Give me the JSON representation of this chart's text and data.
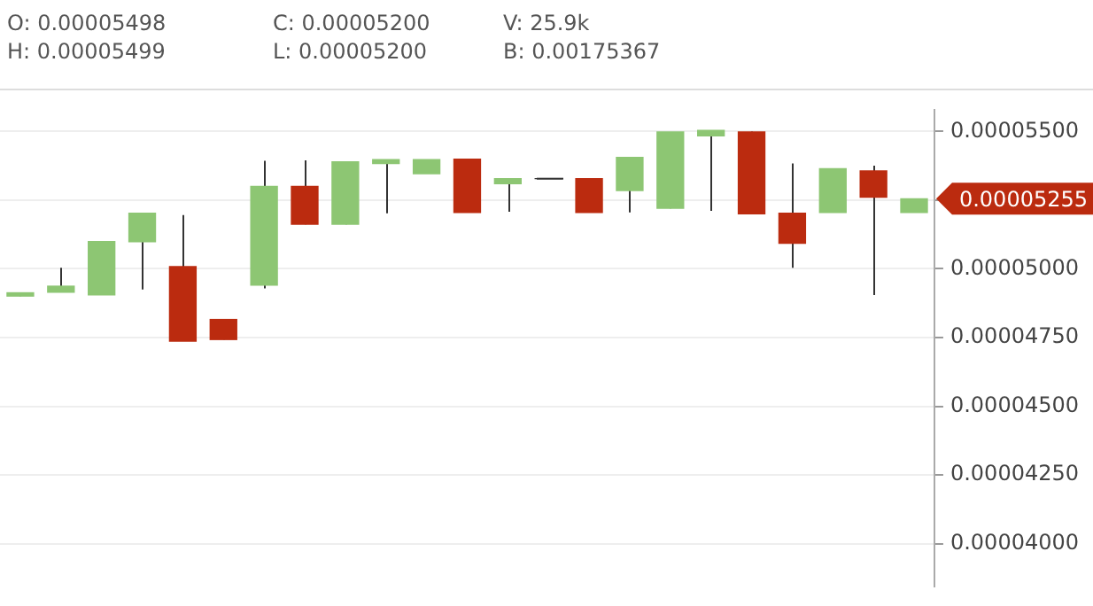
{
  "chart_data": {
    "type": "candlestick",
    "categories": [
      null,
      null,
      null,
      null,
      null,
      null,
      null,
      null,
      null,
      null,
      null,
      null,
      null,
      null,
      null,
      null,
      null,
      null,
      null,
      null,
      null,
      null,
      null
    ],
    "ohlc": [
      [
        4.901e-05,
        4.913e-05,
        4.901e-05,
        4.913e-05
      ],
      [
        4.915e-05,
        5.004e-05,
        4.915e-05,
        4.937e-05
      ],
      [
        4.905e-05,
        5.099e-05,
        4.905e-05,
        5.099e-05
      ],
      [
        5.099e-05,
        5.202e-05,
        4.925e-05,
        5.202e-05
      ],
      [
        5.008e-05,
        5.196e-05,
        4.737e-05,
        4.737e-05
      ],
      [
        4.816e-05,
        4.816e-05,
        4.743e-05,
        4.743e-05
      ],
      [
        4.941e-05,
        5.393e-05,
        4.929e-05,
        5.3e-05
      ],
      [
        5.3e-05,
        5.395e-05,
        5.162e-05,
        5.162e-05
      ],
      [
        5.162e-05,
        5.389e-05,
        5.162e-05,
        5.389e-05
      ],
      [
        5.383e-05,
        5.397e-05,
        5.202e-05,
        5.397e-05
      ],
      [
        5.346e-05,
        5.397e-05,
        5.346e-05,
        5.397e-05
      ],
      [
        5.399e-05,
        5.399e-05,
        5.205e-05,
        5.205e-05
      ],
      [
        5.31e-05,
        5.328e-05,
        5.208e-05,
        5.328e-05
      ],
      [
        5.328e-05,
        5.328e-05,
        5.328e-05,
        5.328e-05
      ],
      [
        5.328e-05,
        5.328e-05,
        5.205e-05,
        5.205e-05
      ],
      [
        5.285e-05,
        5.405e-05,
        5.205e-05,
        5.405e-05
      ],
      [
        5.22e-05,
        5.498e-05,
        5.22e-05,
        5.498e-05
      ],
      [
        5.484e-05,
        5.504e-05,
        5.211e-05,
        5.504e-05
      ],
      [
        5.498e-05,
        5.499e-05,
        5.2e-05,
        5.2e-05
      ],
      [
        5.202e-05,
        5.383e-05,
        5.004e-05,
        5.093e-05
      ],
      [
        5.205e-05,
        5.364e-05,
        5.205e-05,
        5.364e-05
      ],
      [
        5.356e-05,
        5.375e-05,
        4.905e-05,
        5.261e-05
      ],
      [
        5.205e-05,
        5.255e-05,
        5.205e-05,
        5.255e-05
      ]
    ],
    "colors": [
      "#8dc673",
      "#8dc673",
      "#8dc673",
      "#8dc673",
      "#bb2b0f",
      "#bb2b0f",
      "#8dc673",
      "#bb2b0f",
      "#8dc673",
      "#8dc673",
      "#8dc673",
      "#bb2b0f",
      "#8dc673",
      "#333333",
      "#bb2b0f",
      "#8dc673",
      "#8dc673",
      "#8dc673",
      "#bb2b0f",
      "#bb2b0f",
      "#8dc673",
      "#bb2b0f",
      "#8dc673"
    ],
    "ylim": [
      3.846e-05,
      5.577e-05
    ],
    "yticks": [
      {
        "value": 4e-05,
        "label": "0.00004000"
      },
      {
        "value": 4.25e-05,
        "label": "0.00004250"
      },
      {
        "value": 4.5e-05,
        "label": "0.00004500"
      },
      {
        "value": 4.75e-05,
        "label": "0.00004750"
      },
      {
        "value": 5e-05,
        "label": "0.00005000"
      },
      {
        "value": 5.25e-05,
        "label": null
      },
      {
        "value": 5.5e-05,
        "label": "0.00005500"
      }
    ],
    "annotations": [
      "O: 0.00005498",
      "H: 0.00005499",
      "C: 0.00005200",
      "L: 0.00005200",
      "V: 25.9k",
      "B: 0.00175367",
      "0.00005255"
    ],
    "grid": "y",
    "tick_labels": "y",
    "legend": false
  }
}
